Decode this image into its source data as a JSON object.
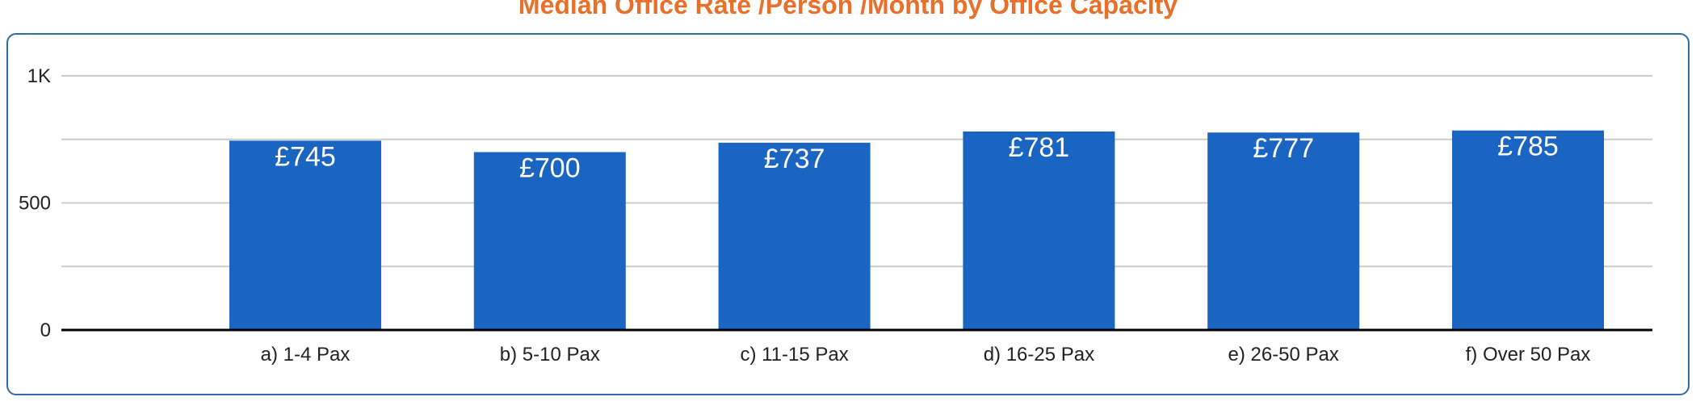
{
  "colors": {
    "title": "#e8702a",
    "bar": "#1a64c2",
    "card_border": "#2f6aa3",
    "grid": "#cccccc",
    "axis": "#000000"
  },
  "chart_data": {
    "type": "bar",
    "title": "Median Office Rate /Person /Month by Office Capacity",
    "xlabel": "",
    "ylabel": "",
    "categories": [
      "a) 1-4 Pax",
      "b) 5-10 Pax",
      "c) 11-15 Pax",
      "d) 16-25 Pax",
      "e) 26-50 Pax",
      "f) Over 50 Pax"
    ],
    "values": [
      745,
      700,
      737,
      781,
      777,
      785
    ],
    "data_labels": [
      "£745",
      "£700",
      "£737",
      "£781",
      "£777",
      "£785"
    ],
    "ylim": [
      0,
      1000
    ],
    "yticks": [
      {
        "value": 0,
        "label": "0"
      },
      {
        "value": 500,
        "label": "500"
      },
      {
        "value": 1000,
        "label": "1K"
      }
    ],
    "gridlines": [
      250,
      500,
      750,
      1000
    ],
    "grid": true,
    "legend": "none"
  }
}
